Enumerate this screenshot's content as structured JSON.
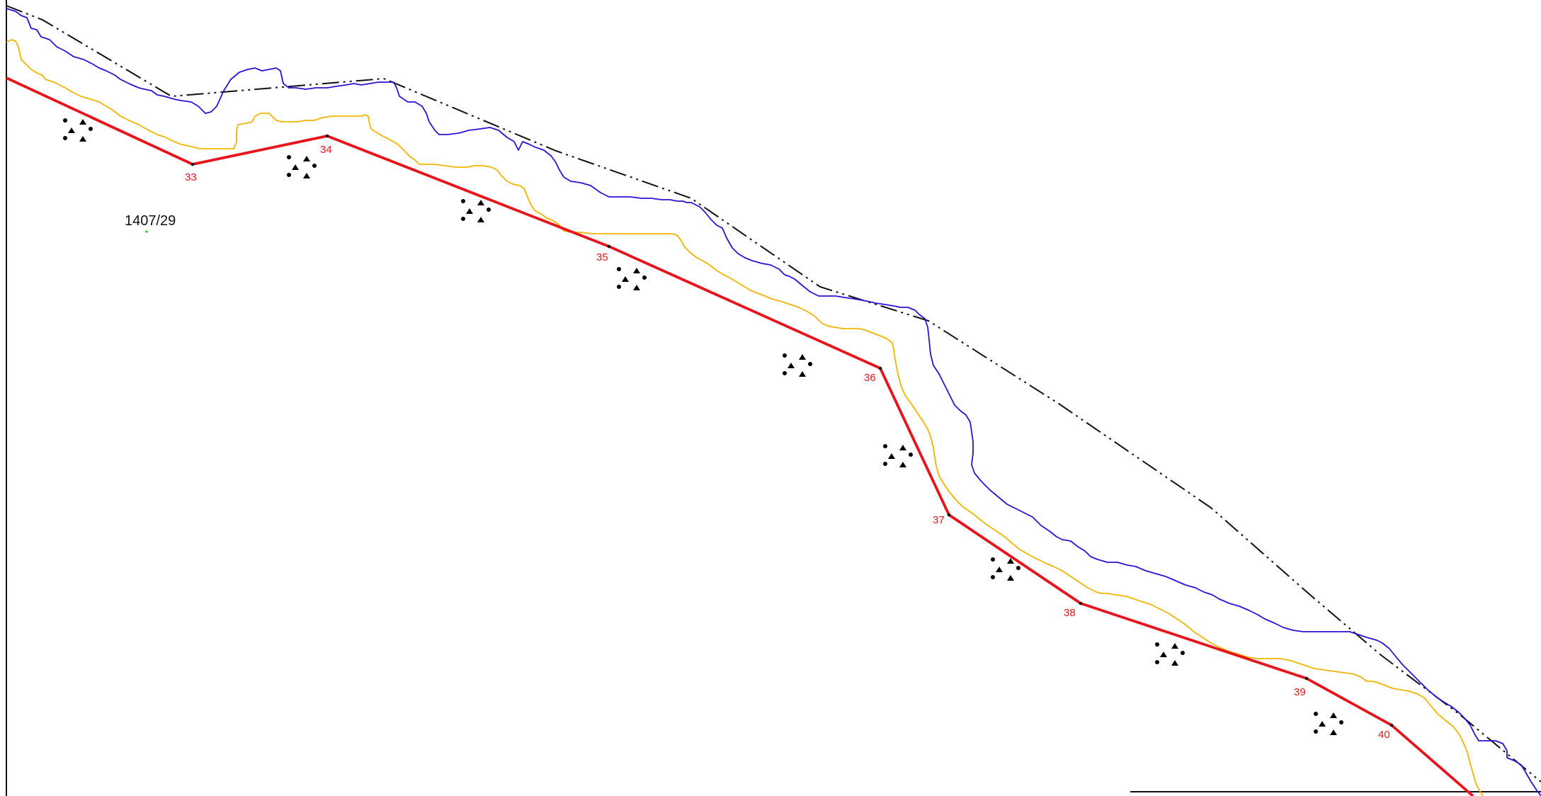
{
  "map": {
    "parcel_label": "1407/29",
    "boundary_points": [
      {
        "label": "33"
      },
      {
        "label": "34"
      },
      {
        "label": "35"
      },
      {
        "label": "36"
      },
      {
        "label": "37"
      },
      {
        "label": "38"
      },
      {
        "label": "39"
      },
      {
        "label": "40"
      }
    ],
    "colors": {
      "boundary_line": "#e8141b",
      "boundary_label": "#e8141b",
      "water_edge": "#2b12d6",
      "buffer_line": "#f2b400",
      "dash_dot_line": "#111111",
      "marsh_symbol": "#5f88b3",
      "parcel_point": "#33cc33"
    },
    "icons": [
      "marsh-symbol-icon"
    ]
  }
}
